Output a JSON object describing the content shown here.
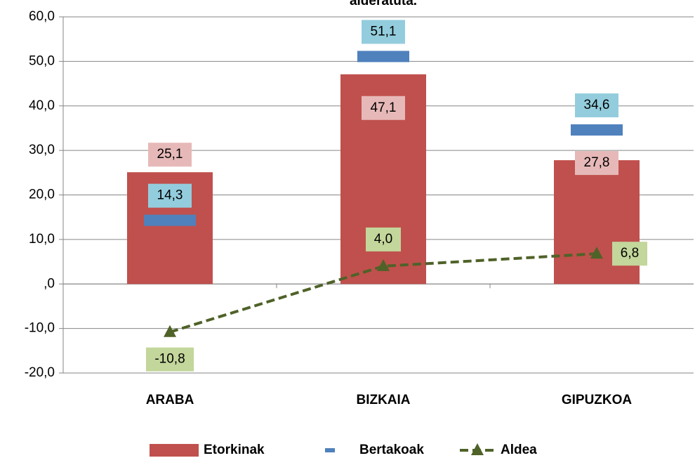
{
  "chart_data": {
    "type": "bar",
    "title": "alderatuta.",
    "categories": [
      "ARABA",
      "BIZKAIA",
      "GIPUZKOA"
    ],
    "series": [
      {
        "name": "Etorkinak",
        "color": "#c0504d",
        "values": [
          25.1,
          47.1,
          27.8
        ],
        "value_labels": [
          "25,1",
          "47,1",
          "27,8"
        ]
      },
      {
        "name": "Bertakoak",
        "color": "#4f81bd",
        "values": [
          14.3,
          51.1,
          34.6
        ],
        "value_labels": [
          "14,3",
          "51,1",
          "34,6"
        ]
      },
      {
        "name": "Aldea",
        "color": "#4f6228",
        "values": [
          -10.8,
          4.0,
          6.8
        ],
        "value_labels": [
          "-10,8",
          "4,0",
          "6,8"
        ]
      }
    ],
    "ylim": [
      -20,
      60
    ],
    "yticks": [
      {
        "value": -20,
        "label": "-20,0"
      },
      {
        "value": -10,
        "label": "-10,0"
      },
      {
        "value": 0,
        "label": ",0"
      },
      {
        "value": 10,
        "label": "10,0"
      },
      {
        "value": 20,
        "label": "20,0"
      },
      {
        "value": 30,
        "label": "30,0"
      },
      {
        "value": 40,
        "label": "40,0"
      },
      {
        "value": 50,
        "label": "50,0"
      },
      {
        "value": 60,
        "label": "60,0"
      }
    ],
    "grid": true
  }
}
